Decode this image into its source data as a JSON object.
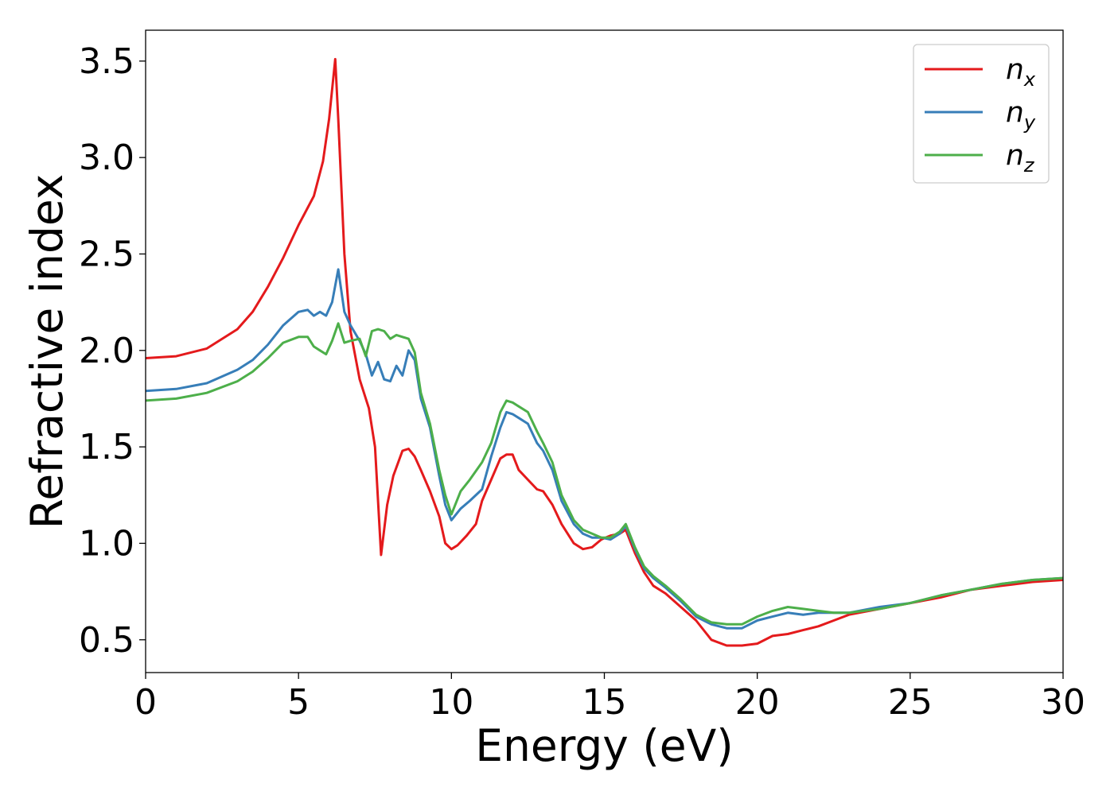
{
  "chart_data": {
    "type": "line",
    "xlabel": "Energy (eV)",
    "ylabel": "Refractive index",
    "xlim": [
      0,
      30
    ],
    "ylim": [
      0.33,
      3.66
    ],
    "xticks": [
      0,
      5,
      10,
      15,
      20,
      25,
      30
    ],
    "xtick_labels": [
      "0",
      "5",
      "10",
      "15",
      "20",
      "25",
      "30"
    ],
    "yticks": [
      0.5,
      1.0,
      1.5,
      2.0,
      2.5,
      3.0,
      3.5
    ],
    "ytick_labels": [
      "0.5",
      "1.0",
      "1.5",
      "2.0",
      "2.5",
      "3.0",
      "3.5"
    ],
    "grid": false,
    "legend_position": "top-right",
    "series": [
      {
        "name": "n",
        "subscript": "x",
        "color": "#e41a1c",
        "x": [
          0,
          1,
          2,
          3,
          3.5,
          4,
          4.5,
          5,
          5.5,
          5.8,
          6.0,
          6.2,
          6.3,
          6.5,
          6.7,
          7.0,
          7.3,
          7.5,
          7.7,
          7.9,
          8.1,
          8.4,
          8.6,
          8.8,
          9.0,
          9.3,
          9.6,
          9.8,
          10.0,
          10.2,
          10.5,
          10.8,
          11.0,
          11.3,
          11.6,
          11.8,
          12.0,
          12.2,
          12.5,
          12.8,
          13.0,
          13.3,
          13.6,
          14.0,
          14.3,
          14.6,
          14.9,
          15.2,
          15.5,
          15.7,
          16.0,
          16.3,
          16.6,
          17.0,
          17.5,
          18.0,
          18.5,
          19.0,
          19.5,
          20.0,
          20.5,
          21.0,
          21.5,
          22.0,
          22.5,
          23.0,
          24.0,
          25.0,
          26.0,
          27.0,
          28.0,
          29.0,
          30.0
        ],
        "y": [
          1.96,
          1.97,
          2.01,
          2.11,
          2.2,
          2.33,
          2.48,
          2.65,
          2.8,
          2.98,
          3.2,
          3.51,
          3.2,
          2.5,
          2.1,
          1.85,
          1.7,
          1.5,
          0.94,
          1.2,
          1.35,
          1.48,
          1.49,
          1.45,
          1.38,
          1.27,
          1.14,
          1.0,
          0.97,
          0.99,
          1.04,
          1.1,
          1.22,
          1.33,
          1.44,
          1.46,
          1.46,
          1.38,
          1.33,
          1.28,
          1.27,
          1.2,
          1.1,
          1.0,
          0.97,
          0.98,
          1.02,
          1.04,
          1.05,
          1.07,
          0.95,
          0.85,
          0.78,
          0.74,
          0.67,
          0.6,
          0.5,
          0.47,
          0.47,
          0.48,
          0.52,
          0.53,
          0.55,
          0.57,
          0.6,
          0.63,
          0.66,
          0.69,
          0.72,
          0.76,
          0.78,
          0.8,
          0.81
        ]
      },
      {
        "name": "n",
        "subscript": "y",
        "color": "#377eb8",
        "x": [
          0,
          1,
          2,
          3,
          3.5,
          4,
          4.5,
          5,
          5.3,
          5.5,
          5.7,
          5.9,
          6.1,
          6.3,
          6.5,
          6.7,
          7.0,
          7.2,
          7.4,
          7.6,
          7.8,
          8.0,
          8.2,
          8.4,
          8.6,
          8.8,
          9.0,
          9.3,
          9.6,
          9.8,
          10.0,
          10.3,
          10.6,
          11.0,
          11.3,
          11.6,
          11.8,
          12.0,
          12.2,
          12.5,
          12.8,
          13.0,
          13.3,
          13.6,
          14.0,
          14.3,
          14.6,
          14.9,
          15.2,
          15.5,
          15.7,
          16.0,
          16.3,
          16.6,
          17.0,
          17.5,
          18.0,
          18.5,
          19.0,
          19.5,
          20.0,
          20.5,
          21.0,
          21.5,
          22.0,
          22.5,
          23.0,
          24.0,
          25.0,
          26.0,
          27.0,
          28.0,
          29.0,
          30.0
        ],
        "y": [
          1.79,
          1.8,
          1.83,
          1.9,
          1.95,
          2.03,
          2.13,
          2.2,
          2.21,
          2.18,
          2.2,
          2.18,
          2.25,
          2.42,
          2.2,
          2.13,
          2.05,
          1.98,
          1.87,
          1.94,
          1.85,
          1.84,
          1.92,
          1.87,
          2.0,
          1.95,
          1.75,
          1.6,
          1.35,
          1.2,
          1.12,
          1.18,
          1.22,
          1.28,
          1.45,
          1.6,
          1.68,
          1.67,
          1.65,
          1.62,
          1.52,
          1.48,
          1.38,
          1.22,
          1.1,
          1.05,
          1.03,
          1.03,
          1.02,
          1.05,
          1.09,
          0.97,
          0.87,
          0.82,
          0.77,
          0.7,
          0.62,
          0.58,
          0.56,
          0.56,
          0.6,
          0.62,
          0.64,
          0.63,
          0.64,
          0.64,
          0.64,
          0.67,
          0.69,
          0.73,
          0.76,
          0.79,
          0.81,
          0.82
        ]
      },
      {
        "name": "n",
        "subscript": "z",
        "color": "#4daf4a",
        "x": [
          0,
          1,
          2,
          3,
          3.5,
          4,
          4.5,
          5,
          5.3,
          5.5,
          5.7,
          5.9,
          6.1,
          6.3,
          6.5,
          6.7,
          7.0,
          7.2,
          7.4,
          7.6,
          7.8,
          8.0,
          8.2,
          8.4,
          8.6,
          8.8,
          9.0,
          9.3,
          9.6,
          9.8,
          10.0,
          10.3,
          10.6,
          11.0,
          11.3,
          11.6,
          11.8,
          12.0,
          12.2,
          12.5,
          12.8,
          13.0,
          13.3,
          13.6,
          14.0,
          14.3,
          14.6,
          14.9,
          15.2,
          15.5,
          15.7,
          16.0,
          16.3,
          16.6,
          17.0,
          17.5,
          18.0,
          18.5,
          19.0,
          19.5,
          20.0,
          20.5,
          21.0,
          21.5,
          22.0,
          22.5,
          23.0,
          24.0,
          25.0,
          26.0,
          27.0,
          28.0,
          29.0,
          30.0
        ],
        "y": [
          1.74,
          1.75,
          1.78,
          1.84,
          1.89,
          1.96,
          2.04,
          2.07,
          2.07,
          2.02,
          2.0,
          1.98,
          2.05,
          2.14,
          2.04,
          2.05,
          2.06,
          1.97,
          2.1,
          2.11,
          2.1,
          2.06,
          2.08,
          2.07,
          2.06,
          1.99,
          1.78,
          1.62,
          1.38,
          1.25,
          1.15,
          1.27,
          1.33,
          1.42,
          1.52,
          1.68,
          1.74,
          1.73,
          1.71,
          1.68,
          1.58,
          1.52,
          1.42,
          1.25,
          1.12,
          1.07,
          1.05,
          1.03,
          1.03,
          1.06,
          1.1,
          0.98,
          0.88,
          0.83,
          0.78,
          0.71,
          0.63,
          0.59,
          0.58,
          0.58,
          0.62,
          0.65,
          0.67,
          0.66,
          0.65,
          0.64,
          0.64,
          0.66,
          0.69,
          0.73,
          0.76,
          0.79,
          0.81,
          0.82
        ]
      }
    ]
  }
}
